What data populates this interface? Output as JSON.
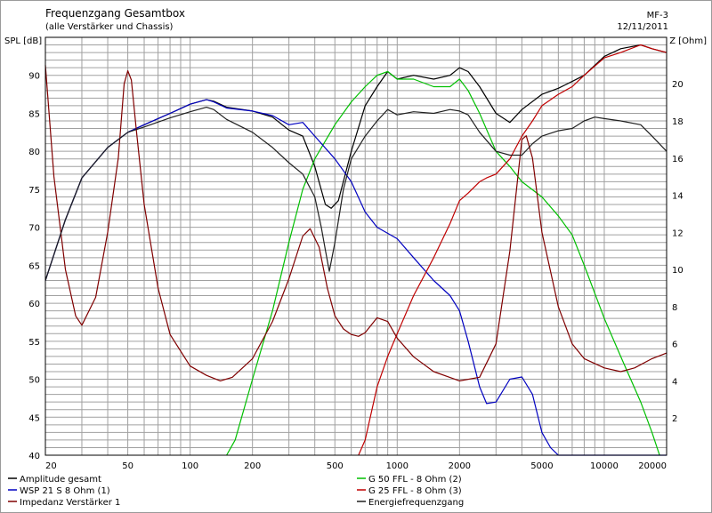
{
  "header": {
    "title": "Frequenzgang Gesamtbox",
    "subtitle": "(alle Verstärker und Chassis)",
    "project": "MF-3",
    "date": "12/11/2011"
  },
  "colors": {
    "background": "#ffffff",
    "grid": "#a0a0a0",
    "frame": "#000000"
  },
  "chart_data": {
    "type": "line",
    "title": "Frequenzgang Gesamtbox",
    "subtitle": "(alle Verstärker und Chassis)",
    "xscale": "log",
    "xlim": [
      20,
      20000
    ],
    "ylim": [
      40,
      95
    ],
    "y2lim": [
      0,
      22.5
    ],
    "ylabel": "SPL [dB]",
    "y2label": "Z [Ohm]",
    "grid": true,
    "x_ticks": [
      20,
      50,
      100,
      200,
      500,
      1000,
      2000,
      5000,
      10000,
      20000
    ],
    "x_tick_labels": [
      "20",
      "50",
      "100",
      "200",
      "500",
      "1000",
      "2000",
      "5000",
      "10000",
      "20000"
    ],
    "y_ticks": [
      40,
      45,
      50,
      55,
      60,
      65,
      70,
      75,
      80,
      85,
      90
    ],
    "y2_ticks": [
      2,
      4,
      6,
      8,
      10,
      12,
      14,
      16,
      18,
      20
    ],
    "legend_position": "bottom",
    "series": [
      {
        "name": "Amplitude gesamt",
        "color": "#000000",
        "axis": "left",
        "points": [
          [
            20,
            63
          ],
          [
            25,
            71
          ],
          [
            30,
            76.5
          ],
          [
            40,
            80.5
          ],
          [
            50,
            82.5
          ],
          [
            60,
            83.5
          ],
          [
            80,
            85
          ],
          [
            100,
            86.2
          ],
          [
            120,
            86.8
          ],
          [
            130,
            86.6
          ],
          [
            150,
            85.8
          ],
          [
            200,
            85.3
          ],
          [
            250,
            84.5
          ],
          [
            300,
            82.8
          ],
          [
            350,
            82
          ],
          [
            400,
            78
          ],
          [
            450,
            73
          ],
          [
            480,
            72.5
          ],
          [
            520,
            73.5
          ],
          [
            600,
            80
          ],
          [
            700,
            86
          ],
          [
            800,
            88.5
          ],
          [
            900,
            90.5
          ],
          [
            1000,
            89.5
          ],
          [
            1200,
            90
          ],
          [
            1500,
            89.5
          ],
          [
            1800,
            90
          ],
          [
            2000,
            91
          ],
          [
            2200,
            90.5
          ],
          [
            2500,
            88.5
          ],
          [
            3000,
            85
          ],
          [
            3500,
            83.8
          ],
          [
            4000,
            85.5
          ],
          [
            5000,
            87.5
          ],
          [
            6000,
            88.3
          ],
          [
            7000,
            89.2
          ],
          [
            8000,
            90
          ],
          [
            10000,
            92.5
          ],
          [
            12000,
            93.5
          ],
          [
            15000,
            94
          ],
          [
            17000,
            93.5
          ],
          [
            20000,
            93
          ]
        ]
      },
      {
        "name": "G 50 FFL - 8 Ohm (2)",
        "color": "#00c000",
        "axis": "left",
        "points": [
          [
            150,
            40
          ],
          [
            165,
            42
          ],
          [
            200,
            50
          ],
          [
            250,
            59
          ],
          [
            300,
            68
          ],
          [
            350,
            75
          ],
          [
            400,
            79
          ],
          [
            500,
            83.5
          ],
          [
            600,
            86.5
          ],
          [
            700,
            88.5
          ],
          [
            800,
            90
          ],
          [
            900,
            90.5
          ],
          [
            1000,
            89.5
          ],
          [
            1200,
            89.5
          ],
          [
            1500,
            88.5
          ],
          [
            1800,
            88.5
          ],
          [
            2000,
            89.5
          ],
          [
            2200,
            88
          ],
          [
            2500,
            85
          ],
          [
            3000,
            80
          ],
          [
            3500,
            78
          ],
          [
            4000,
            76
          ],
          [
            5000,
            74
          ],
          [
            6000,
            71.5
          ],
          [
            7000,
            69
          ],
          [
            8000,
            65
          ],
          [
            10000,
            58
          ],
          [
            12000,
            53
          ],
          [
            15000,
            47
          ],
          [
            17000,
            43
          ],
          [
            18500,
            40
          ]
        ]
      },
      {
        "name": "WSP 21 S 8 Ohm (1)",
        "color": "#0000c0",
        "axis": "left",
        "points": [
          [
            20,
            63
          ],
          [
            25,
            71
          ],
          [
            30,
            76.5
          ],
          [
            40,
            80.5
          ],
          [
            50,
            82.5
          ],
          [
            60,
            83.5
          ],
          [
            80,
            85
          ],
          [
            100,
            86.2
          ],
          [
            120,
            86.8
          ],
          [
            130,
            86.5
          ],
          [
            150,
            85.7
          ],
          [
            200,
            85.3
          ],
          [
            250,
            84.7
          ],
          [
            300,
            83.5
          ],
          [
            350,
            83.8
          ],
          [
            400,
            82
          ],
          [
            500,
            79
          ],
          [
            600,
            76
          ],
          [
            700,
            72
          ],
          [
            800,
            70
          ],
          [
            1000,
            68.5
          ],
          [
            1200,
            66
          ],
          [
            1500,
            63
          ],
          [
            1800,
            61
          ],
          [
            2000,
            59
          ],
          [
            2200,
            55
          ],
          [
            2500,
            49
          ],
          [
            2700,
            46.8
          ],
          [
            3000,
            47
          ],
          [
            3500,
            50
          ],
          [
            4000,
            50.3
          ],
          [
            4500,
            48
          ],
          [
            5000,
            43
          ],
          [
            5500,
            41
          ],
          [
            6000,
            40
          ],
          [
            20000,
            40
          ]
        ]
      },
      {
        "name": "G 25 FFL - 8 Ohm (3)",
        "color": "#c00000",
        "axis": "left",
        "points": [
          [
            650,
            40
          ],
          [
            700,
            42
          ],
          [
            800,
            49
          ],
          [
            900,
            53
          ],
          [
            1000,
            56
          ],
          [
            1200,
            61
          ],
          [
            1500,
            66
          ],
          [
            1800,
            70.5
          ],
          [
            2000,
            73.5
          ],
          [
            2200,
            74.5
          ],
          [
            2500,
            76
          ],
          [
            2700,
            76.5
          ],
          [
            3000,
            77
          ],
          [
            3500,
            79
          ],
          [
            4000,
            82
          ],
          [
            4500,
            84
          ],
          [
            5000,
            86
          ],
          [
            6000,
            87.5
          ],
          [
            7000,
            88.5
          ],
          [
            8000,
            90
          ],
          [
            10000,
            92.3
          ],
          [
            12000,
            93
          ],
          [
            15000,
            94
          ],
          [
            17000,
            93.5
          ],
          [
            20000,
            93
          ]
        ]
      },
      {
        "name": "Impedanz Verstärker 1",
        "color": "#800000",
        "axis": "right",
        "points": [
          [
            20,
            21
          ],
          [
            22,
            15
          ],
          [
            25,
            10
          ],
          [
            28,
            7.5
          ],
          [
            30,
            7
          ],
          [
            35,
            8.5
          ],
          [
            40,
            12
          ],
          [
            45,
            16
          ],
          [
            48,
            20
          ],
          [
            50,
            20.7
          ],
          [
            52,
            20.2
          ],
          [
            55,
            17.5
          ],
          [
            60,
            13.5
          ],
          [
            70,
            9
          ],
          [
            80,
            6.5
          ],
          [
            100,
            4.8
          ],
          [
            120,
            4.3
          ],
          [
            140,
            4
          ],
          [
            160,
            4.2
          ],
          [
            200,
            5.2
          ],
          [
            250,
            7.2
          ],
          [
            300,
            9.5
          ],
          [
            350,
            11.8
          ],
          [
            380,
            12.2
          ],
          [
            420,
            11.2
          ],
          [
            460,
            9
          ],
          [
            500,
            7.5
          ],
          [
            550,
            6.8
          ],
          [
            600,
            6.5
          ],
          [
            650,
            6.4
          ],
          [
            700,
            6.6
          ],
          [
            800,
            7.4
          ],
          [
            900,
            7.2
          ],
          [
            1000,
            6.3
          ],
          [
            1200,
            5.3
          ],
          [
            1500,
            4.5
          ],
          [
            2000,
            4
          ],
          [
            2500,
            4.2
          ],
          [
            3000,
            6
          ],
          [
            3500,
            11
          ],
          [
            4000,
            17
          ],
          [
            4200,
            17.2
          ],
          [
            4500,
            16
          ],
          [
            5000,
            12
          ],
          [
            6000,
            8
          ],
          [
            7000,
            6
          ],
          [
            8000,
            5.2
          ],
          [
            10000,
            4.7
          ],
          [
            12000,
            4.5
          ],
          [
            14000,
            4.7
          ],
          [
            17000,
            5.2
          ],
          [
            20000,
            5.5
          ]
        ]
      },
      {
        "name": "Energiefrequenzgang",
        "color": "#202020",
        "axis": "left",
        "points": [
          [
            20,
            63
          ],
          [
            25,
            71
          ],
          [
            30,
            76.5
          ],
          [
            40,
            80.5
          ],
          [
            50,
            82.5
          ],
          [
            60,
            83.2
          ],
          [
            80,
            84.4
          ],
          [
            100,
            85.2
          ],
          [
            120,
            85.8
          ],
          [
            130,
            85.5
          ],
          [
            150,
            84.2
          ],
          [
            200,
            82.5
          ],
          [
            250,
            80.5
          ],
          [
            300,
            78.5
          ],
          [
            350,
            77
          ],
          [
            400,
            74
          ],
          [
            430,
            70
          ],
          [
            450,
            67
          ],
          [
            470,
            64.2
          ],
          [
            500,
            68
          ],
          [
            550,
            75
          ],
          [
            600,
            79
          ],
          [
            700,
            82
          ],
          [
            800,
            84
          ],
          [
            900,
            85.5
          ],
          [
            1000,
            84.8
          ],
          [
            1200,
            85.2
          ],
          [
            1500,
            85
          ],
          [
            1800,
            85.5
          ],
          [
            2000,
            85.3
          ],
          [
            2200,
            84.8
          ],
          [
            2500,
            82.5
          ],
          [
            3000,
            80
          ],
          [
            3500,
            79.5
          ],
          [
            4000,
            79.5
          ],
          [
            4500,
            81
          ],
          [
            5000,
            82
          ],
          [
            6000,
            82.7
          ],
          [
            7000,
            83
          ],
          [
            8000,
            84
          ],
          [
            9000,
            84.5
          ],
          [
            10000,
            84.3
          ],
          [
            12000,
            84
          ],
          [
            15000,
            83.5
          ],
          [
            17000,
            82
          ],
          [
            20000,
            80
          ]
        ]
      }
    ]
  }
}
